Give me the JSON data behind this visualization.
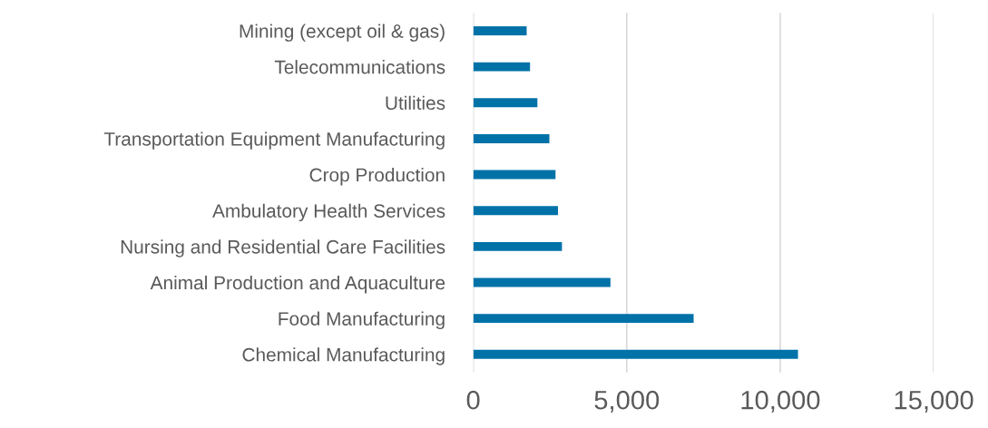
{
  "chart_data": {
    "type": "bar",
    "orientation": "horizontal",
    "categories": [
      "Mining (except oil & gas)",
      "Telecommunications",
      "Utilities",
      "Transportation Equipment Manufacturing",
      "Crop Production",
      "Ambulatory Health Services",
      "Nursing and Residential Care Facilities",
      "Animal Production and Aquaculture",
      "Food Manufacturing",
      "Chemical Manufacturing"
    ],
    "values": [
      1740,
      1850,
      2090,
      2480,
      2680,
      2760,
      2890,
      4470,
      7180,
      10580
    ],
    "color": "#0072a8",
    "xlim": [
      0,
      15000
    ],
    "xticks": [
      0,
      {
        "value": 5000,
        "label": "5,000"
      },
      {
        "value": 10000,
        "label": "10,000"
      },
      {
        "value": 15000,
        "label": "15,000"
      }
    ],
    "grid": "x"
  }
}
